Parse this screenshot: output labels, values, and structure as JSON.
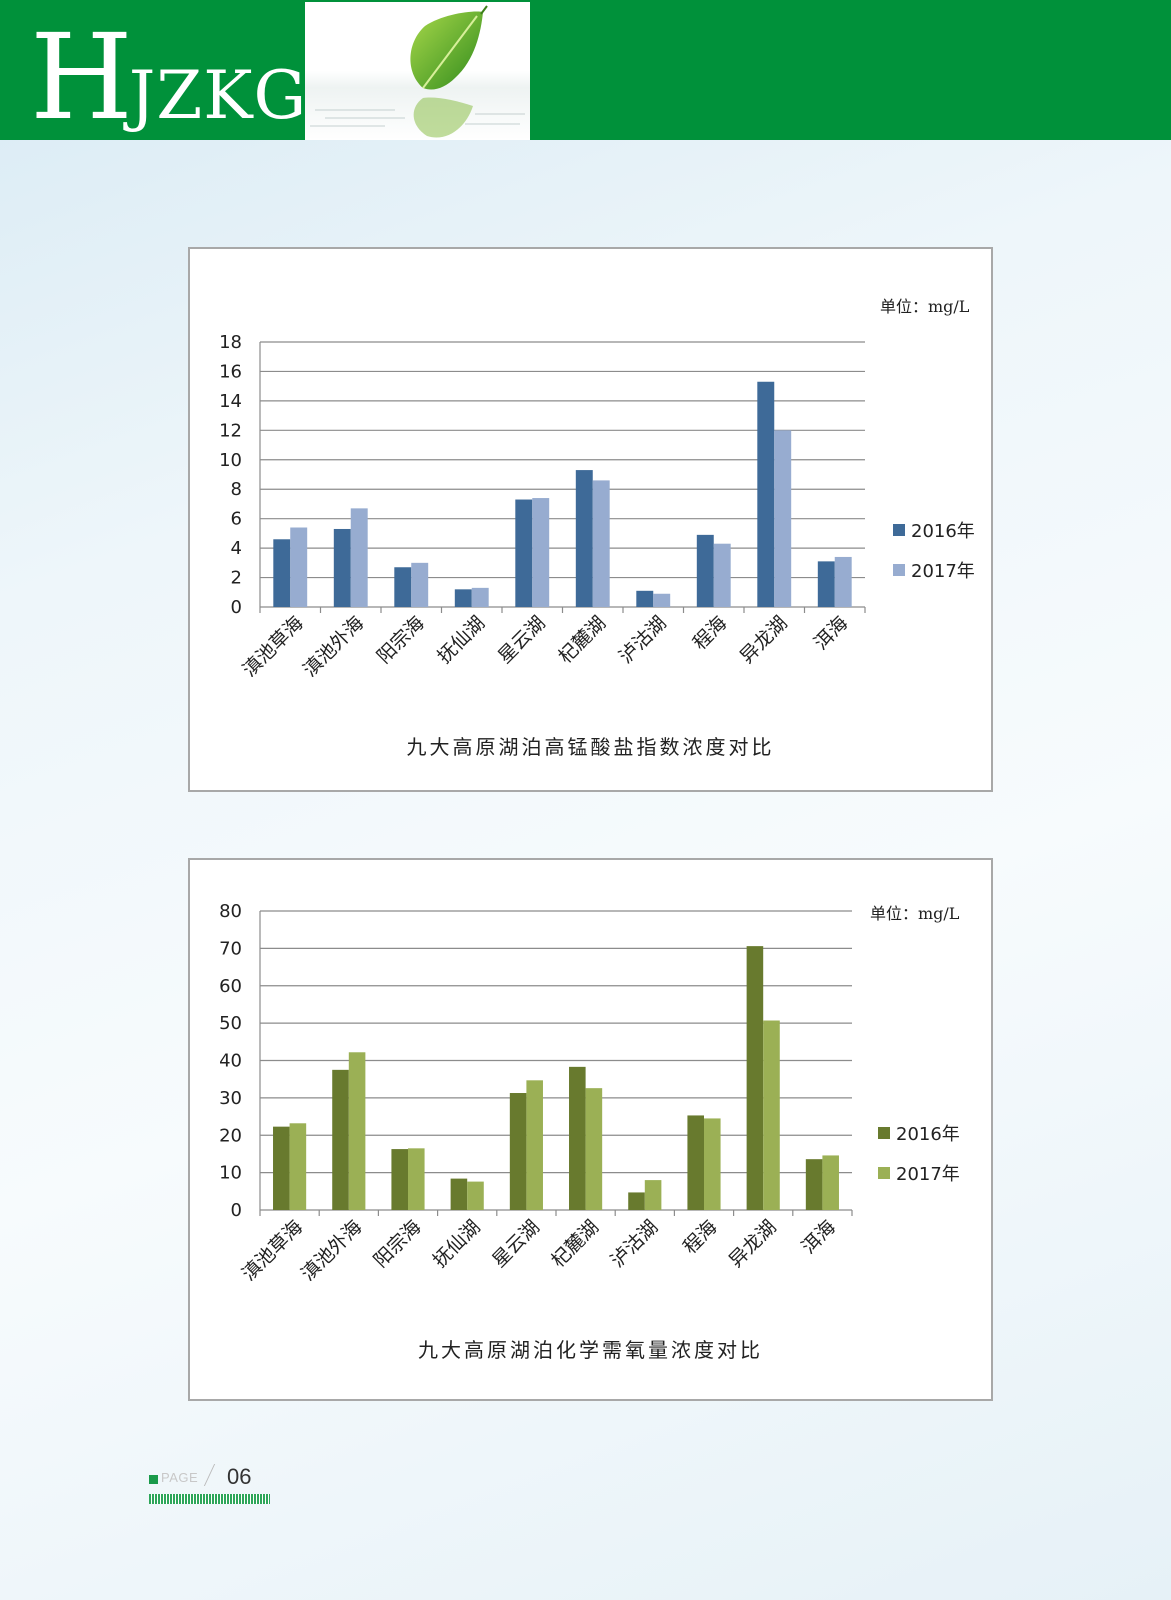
{
  "header": {
    "logo_big": "H",
    "logo_small": "JZKGB",
    "colors": {
      "band": "#00913a"
    }
  },
  "footer": {
    "page_word": "PAGE",
    "page_number": "06"
  },
  "chart_data": [
    {
      "type": "bar",
      "title": "九大高原湖泊高锰酸盐指数浓度对比",
      "unit_label": "单位：mg/L",
      "categories": [
        "滇池草海",
        "滇池外海",
        "阳宗海",
        "抚仙湖",
        "星云湖",
        "杞麓湖",
        "泸沽湖",
        "程海",
        "异龙湖",
        "洱海"
      ],
      "series": [
        {
          "name": "2016年",
          "color": "#3e6a98",
          "values": [
            4.6,
            5.3,
            2.7,
            1.2,
            7.3,
            9.3,
            1.1,
            4.9,
            15.3,
            3.1
          ]
        },
        {
          "name": "2017年",
          "color": "#97acd0",
          "values": [
            5.4,
            6.7,
            3.0,
            1.3,
            7.4,
            8.6,
            0.9,
            4.3,
            12.0,
            3.4
          ]
        }
      ],
      "yticks": [
        "0",
        "2",
        "4",
        "6",
        "8",
        "10",
        "12",
        "14",
        "16",
        "18"
      ],
      "ylim": [
        0,
        18
      ],
      "grid": true,
      "legend": "right"
    },
    {
      "type": "bar",
      "title": "九大高原湖泊化学需氧量浓度对比",
      "unit_label": "单位：mg/L",
      "categories": [
        "滇池草海",
        "滇池外海",
        "阳宗海",
        "抚仙湖",
        "星云湖",
        "杞麓湖",
        "泸沽湖",
        "程海",
        "异龙湖",
        "洱海"
      ],
      "series": [
        {
          "name": "2016年",
          "color": "#687a2e",
          "values": [
            22.3,
            37.5,
            16.3,
            8.4,
            31.3,
            38.3,
            4.7,
            25.3,
            70.6,
            13.6
          ]
        },
        {
          "name": "2017年",
          "color": "#9bb055",
          "values": [
            23.2,
            42.2,
            16.5,
            7.6,
            34.7,
            32.6,
            8.0,
            24.5,
            50.7,
            14.6
          ]
        }
      ],
      "yticks": [
        "0",
        "10",
        "20",
        "30",
        "40",
        "50",
        "60",
        "70",
        "80"
      ],
      "ylim": [
        0,
        80
      ],
      "grid": true,
      "legend": "right"
    }
  ]
}
